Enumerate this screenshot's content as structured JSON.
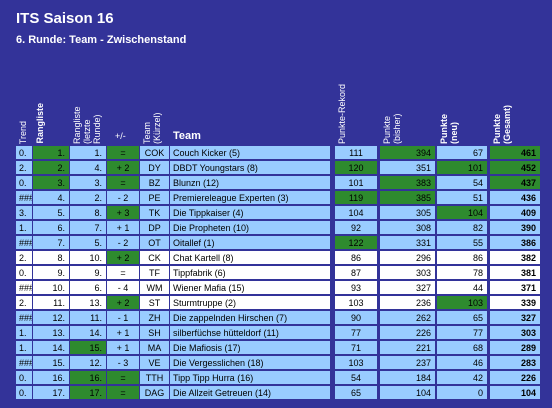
{
  "header": {
    "title": "ITS Saison 16",
    "subtitle": "6. Runde: Team - Zwischenstand"
  },
  "table": {
    "columns": [
      "Trend",
      "Rangliste",
      "Rangliste (letzte Runde)",
      "+/-",
      "Team (Kürzel)",
      "Team",
      "Punkte-Rekord",
      "Punkte (bisher)",
      "Punkte (neu)",
      "Punkte (Gesamt)"
    ],
    "rows": [
      [
        "0.",
        "1.",
        "1.",
        "=",
        "COK",
        "Couch Kicker (5)",
        111,
        394,
        67,
        461
      ],
      [
        "2.",
        "2.",
        "4.",
        "+ 2",
        "DY",
        "DBDT Youngstars (8)",
        120,
        351,
        101,
        452
      ],
      [
        "0.",
        "3.",
        "3.",
        "=",
        "BZ",
        "Blunzn (12)",
        101,
        383,
        54,
        437
      ],
      [
        "###",
        "4.",
        "2.",
        "- 2",
        "PE",
        "Premiereleague Experten (3)",
        119,
        385,
        51,
        436
      ],
      [
        "3.",
        "5.",
        "8.",
        "+ 3",
        "TK",
        "Die Tippkaiser (4)",
        104,
        305,
        104,
        409
      ],
      [
        "1.",
        "6.",
        "7.",
        "+ 1",
        "DP",
        "Die Propheten (10)",
        92,
        308,
        82,
        390
      ],
      [
        "###",
        "7.",
        "5.",
        "- 2",
        "OT",
        "Oitallef (1)",
        122,
        331,
        55,
        386
      ],
      [
        "2.",
        "8.",
        "10.",
        "+ 2",
        "CK",
        "Chat Kartell (8)",
        86,
        296,
        86,
        382
      ],
      [
        "0.",
        "9.",
        "9.",
        "=",
        "TF",
        "Tippfabrik (6)",
        87,
        303,
        78,
        381
      ],
      [
        "###",
        "10.",
        "6.",
        "- 4",
        "WM",
        "Wiener Mafia (15)",
        93,
        327,
        44,
        371
      ],
      [
        "2.",
        "11.",
        "13.",
        "+ 2",
        "ST",
        "Sturmtruppe (2)",
        103,
        236,
        103,
        339
      ],
      [
        "###",
        "12.",
        "11.",
        "- 1",
        "ZH",
        "Die zappelnden Hirschen (7)",
        90,
        262,
        65,
        327
      ],
      [
        "1.",
        "13.",
        "14.",
        "+ 1",
        "SH",
        "silberfüchse hütteldorf (11)",
        77,
        226,
        77,
        303
      ],
      [
        "1.",
        "14.",
        "15.",
        "+ 1",
        "MA",
        "Die Mafiosis (17)",
        71,
        221,
        68,
        289
      ],
      [
        "###",
        "15.",
        "12.",
        "- 3",
        "VE",
        "Die Vergesslichen (18)",
        103,
        237,
        46,
        283
      ],
      [
        "0.",
        "16.",
        "16.",
        "=",
        "TTH",
        "Tipp Tipp Hurra (16)",
        54,
        184,
        42,
        226
      ],
      [
        "0.",
        "17.",
        "17.",
        "=",
        "DAG",
        "Die Allzeit Getreuen (14)",
        65,
        104,
        0,
        104
      ]
    ]
  }
}
